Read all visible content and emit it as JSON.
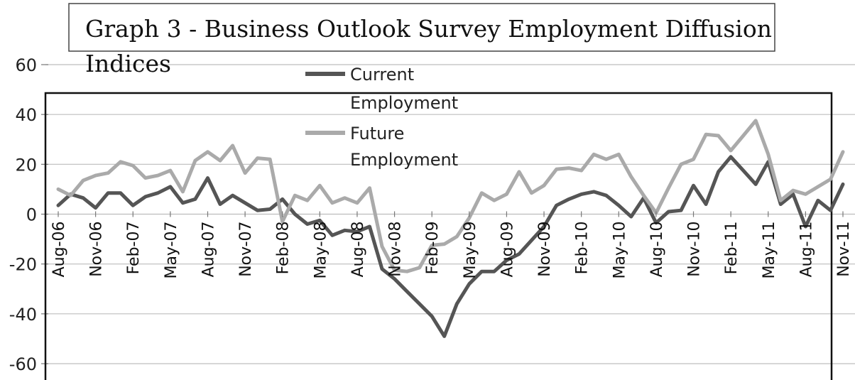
{
  "chart_data": {
    "type": "line",
    "title": "Graph 3 - Business Outlook Survey Employment Diffusion Indices",
    "title_lines": [
      "Graph 3 - Business Outlook Survey Employment Diffusion",
      "Indices"
    ],
    "xlabel": "",
    "ylabel": "",
    "ylim": [
      -60,
      60
    ],
    "yticks": [
      60,
      40,
      20,
      0,
      -20,
      -40,
      -60
    ],
    "grid": true,
    "legend_position": "top-center",
    "x_tick_labels": [
      "Aug-06",
      "Nov-06",
      "Feb-07",
      "May-07",
      "Aug-07",
      "Nov-07",
      "Feb-08",
      "May-08",
      "Aug-08",
      "Nov-08",
      "Feb-09",
      "May-09",
      "Aug-09",
      "Nov-09",
      "Feb-10",
      "May-10",
      "Aug-10",
      "Nov-10",
      "Feb-11",
      "May-11",
      "Aug-11",
      "Nov-11"
    ],
    "categories": [
      "Aug-06",
      "Sep-06",
      "Oct-06",
      "Nov-06",
      "Dec-06",
      "Jan-07",
      "Feb-07",
      "Mar-07",
      "Apr-07",
      "May-07",
      "Jun-07",
      "Jul-07",
      "Aug-07",
      "Sep-07",
      "Oct-07",
      "Nov-07",
      "Dec-07",
      "Jan-08",
      "Feb-08",
      "Mar-08",
      "Apr-08",
      "May-08",
      "Jun-08",
      "Jul-08",
      "Aug-08",
      "Sep-08",
      "Oct-08",
      "Nov-08",
      "Dec-08",
      "Jan-09",
      "Feb-09",
      "Mar-09",
      "Apr-09",
      "May-09",
      "Jun-09",
      "Jul-09",
      "Aug-09",
      "Sep-09",
      "Oct-09",
      "Nov-09",
      "Dec-09",
      "Jan-10",
      "Feb-10",
      "Mar-10",
      "Apr-10",
      "May-10",
      "Jun-10",
      "Jul-10",
      "Aug-10",
      "Sep-10",
      "Oct-10",
      "Nov-10",
      "Dec-10",
      "Jan-11",
      "Feb-11",
      "Mar-11",
      "Apr-11",
      "May-11",
      "Jun-11",
      "Jul-11",
      "Aug-11",
      "Sep-11",
      "Oct-11",
      "Nov-11"
    ],
    "series": [
      {
        "name": "Current Employment",
        "legend_lines": [
          "Current",
          "Employment"
        ],
        "color": "#555555",
        "values": [
          3.5,
          8,
          6.5,
          2.5,
          8.5,
          8.5,
          3.5,
          7,
          8.5,
          11,
          4.5,
          6,
          14.5,
          4,
          7.5,
          4.5,
          1.5,
          2,
          6,
          0,
          -4,
          -2.5,
          -8.5,
          -6.5,
          -7,
          -5,
          -22,
          -26,
          -31,
          -36,
          -41,
          -49,
          -36,
          -28,
          -23,
          -23,
          -18.5,
          -16,
          -10.5,
          -5,
          3.5,
          6,
          8,
          9,
          7.5,
          3.5,
          -1,
          6.5,
          -3.5,
          1,
          1.5,
          11.5,
          4,
          17,
          23,
          17.5,
          12,
          21,
          4,
          8,
          -5,
          5.5,
          1.5,
          12
        ]
      },
      {
        "name": "Future Employment",
        "legend_lines": [
          "Future",
          "Employment"
        ],
        "color": "#aaaaaa",
        "values": [
          10,
          7.5,
          13.5,
          15.5,
          16.5,
          21,
          19.5,
          14.5,
          15.5,
          17.5,
          9,
          21.5,
          25,
          21.5,
          27.5,
          16.5,
          22.5,
          22,
          -3,
          7.5,
          5.5,
          11.5,
          4.5,
          6.5,
          4.5,
          10.5,
          -13,
          -22.5,
          -23,
          -21.5,
          -12.5,
          -12,
          -9,
          -1.5,
          8.5,
          5.5,
          8,
          17,
          8.5,
          11.5,
          18,
          18.5,
          17.5,
          24,
          22,
          24,
          15,
          7.5,
          0.5,
          10.5,
          20,
          22,
          32,
          31.5,
          25.5,
          31.5,
          37.5,
          24,
          5.5,
          9.5,
          8,
          11,
          14,
          25
        ]
      }
    ]
  }
}
